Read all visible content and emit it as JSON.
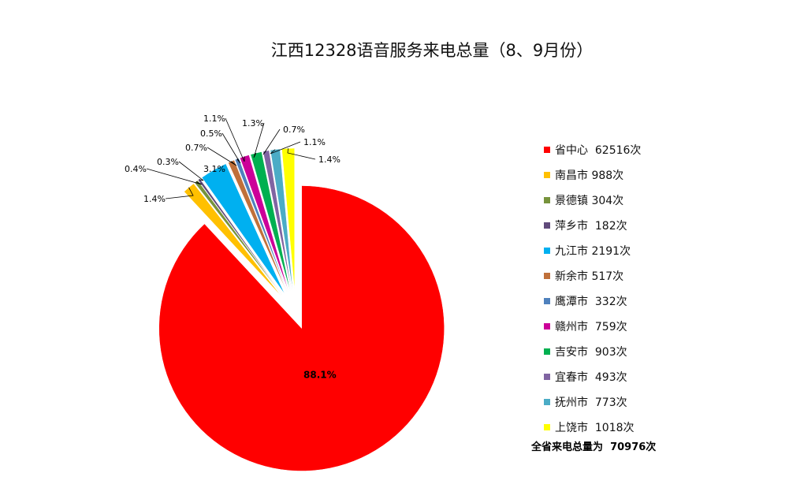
{
  "chart_data": {
    "type": "pie",
    "title": "江西12328语音服务来电总量（8、9月份）",
    "unit": "次",
    "categories": [
      "省中心",
      "南昌市",
      "景德镇",
      "萍乡市",
      "九江市",
      "新余市",
      "鹰潭市",
      "赣州市",
      "吉安市",
      "宜春市",
      "抚州市",
      "上饶市"
    ],
    "values": [
      62516,
      988,
      304,
      182,
      2191,
      517,
      332,
      759,
      903,
      493,
      773,
      1018
    ],
    "legend_labels": [
      "省中心  62516次",
      "南昌市 988次",
      "景德镇 304次",
      "萍乡市  182次",
      "九江市 2191次",
      "新余市 517次",
      "鹰潭市  332次",
      "赣州市  759次",
      "吉安市  903次",
      "宜春市  493次",
      "抚州市  773次",
      "上饶市  1018次"
    ],
    "data_labels": [
      "88.1%",
      "1.4%",
      "0.4%",
      "0.3%",
      "3.1%",
      "0.7%",
      "0.5%",
      "1.1%",
      "1.3%",
      "0.7%",
      "1.1%",
      "1.4%"
    ],
    "colors": [
      "#ff0000",
      "#ffc000",
      "#77933c",
      "#604a7b",
      "#00b0f0",
      "#c0703a",
      "#4f81bd",
      "#cc0099",
      "#00b050",
      "#8064a2",
      "#4bacc6",
      "#ffff00"
    ],
    "legend_position": "right",
    "total_label": "全省来电总量为",
    "total_value": "70976次"
  }
}
